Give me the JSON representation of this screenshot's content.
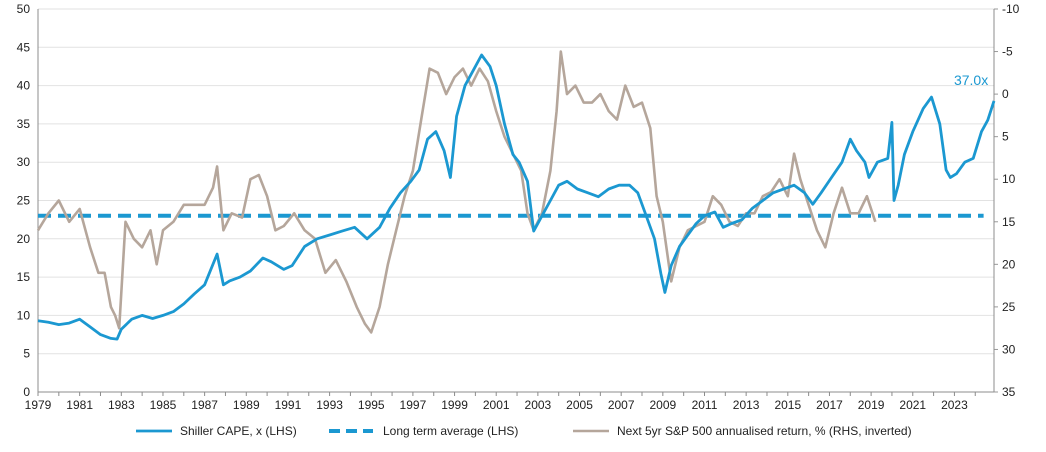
{
  "chart_data": {
    "type": "line",
    "title": "",
    "xlabel": "",
    "ylabel_left": "",
    "ylabel_right": "",
    "x_ticks": [
      "1979",
      "1981",
      "1983",
      "1985",
      "1987",
      "1989",
      "1991",
      "1993",
      "1995",
      "1997",
      "1999",
      "2001",
      "2003",
      "2005",
      "2007",
      "2009",
      "2011",
      "2013",
      "2015",
      "2017",
      "2019",
      "2021",
      "2023"
    ],
    "xlim": [
      1979,
      2024.9
    ],
    "left_axis": {
      "ticks": [
        "0",
        "5",
        "10",
        "15",
        "20",
        "25",
        "30",
        "35",
        "40",
        "45",
        "50"
      ],
      "ylim": [
        0,
        50
      ]
    },
    "right_axis": {
      "ticks": [
        "-10",
        "-5",
        "0",
        "5",
        "10",
        "15",
        "20",
        "25",
        "30",
        "35"
      ],
      "ylim": [
        -10,
        35
      ],
      "inverted": true
    },
    "legend_position": "bottom",
    "colors": {
      "cape": "#1b98d1",
      "average": "#1b98d1",
      "returns": "#b5a69b",
      "annotation": "#1b98d1"
    },
    "annotation": {
      "text": "37.0x",
      "x": 2023.8,
      "y": 40.1
    },
    "series": [
      {
        "name": "Shiller CAPE, x (LHS)",
        "axis": "left",
        "style": "solid",
        "x": [
          1979.0,
          1979.5,
          1980.0,
          1980.5,
          1981.0,
          1981.5,
          1982.0,
          1982.5,
          1982.8,
          1983.0,
          1983.5,
          1984.0,
          1984.5,
          1985.0,
          1985.5,
          1986.0,
          1986.5,
          1987.0,
          1987.6,
          1987.9,
          1988.2,
          1988.7,
          1989.2,
          1989.8,
          1990.2,
          1990.8,
          1991.2,
          1991.8,
          1992.4,
          1993.0,
          1993.6,
          1994.2,
          1994.8,
          1995.4,
          1995.9,
          1996.4,
          1996.9,
          1997.3,
          1997.7,
          1998.1,
          1998.5,
          1998.8,
          1999.1,
          1999.5,
          1999.9,
          2000.3,
          2000.7,
          2001.0,
          2001.4,
          2001.8,
          2002.1,
          2002.5,
          2002.8,
          2003.2,
          2003.6,
          2004.0,
          2004.4,
          2004.9,
          2005.4,
          2005.9,
          2006.4,
          2006.9,
          2007.4,
          2007.8,
          2008.2,
          2008.6,
          2008.9,
          2009.1,
          2009.4,
          2009.8,
          2010.2,
          2010.6,
          2011.0,
          2011.5,
          2011.9,
          2012.3,
          2012.8,
          2013.3,
          2013.8,
          2014.3,
          2014.8,
          2015.3,
          2015.8,
          2016.2,
          2016.6,
          2017.1,
          2017.6,
          2018.0,
          2018.3,
          2018.7,
          2018.9,
          2019.3,
          2019.8,
          2020.0,
          2020.1,
          2020.3,
          2020.6,
          2021.0,
          2021.5,
          2021.9,
          2022.3,
          2022.6,
          2022.8,
          2023.1,
          2023.5,
          2023.9,
          2024.3,
          2024.6,
          2024.9
        ],
        "values": [
          9.3,
          9.1,
          8.8,
          9.0,
          9.5,
          8.5,
          7.5,
          7.0,
          6.9,
          8.2,
          9.5,
          10.0,
          9.6,
          10.0,
          10.5,
          11.5,
          12.8,
          14.0,
          18.0,
          14.0,
          14.5,
          15.0,
          15.8,
          17.5,
          17.0,
          16.0,
          16.5,
          19.0,
          20.0,
          20.5,
          21.0,
          21.5,
          20.0,
          21.5,
          24.0,
          26.0,
          27.5,
          29.0,
          33.0,
          34.0,
          31.5,
          28.0,
          36.0,
          40.0,
          42.0,
          44.0,
          42.5,
          40.0,
          35.0,
          31.0,
          30.0,
          27.5,
          21.0,
          23.0,
          25.0,
          27.0,
          27.5,
          26.5,
          26.0,
          25.5,
          26.5,
          27.0,
          27.0,
          26.0,
          23.0,
          20.0,
          15.5,
          13.0,
          16.5,
          19.0,
          20.5,
          22.0,
          23.0,
          23.5,
          21.5,
          22.0,
          22.5,
          24.0,
          25.0,
          26.0,
          26.5,
          27.0,
          26.0,
          24.5,
          26.0,
          28.0,
          30.0,
          33.0,
          31.5,
          30.0,
          28.0,
          30.0,
          30.5,
          35.2,
          25.0,
          27.0,
          31.0,
          34.0,
          37.0,
          38.5,
          35.0,
          29.0,
          28.0,
          28.5,
          30.0,
          30.5,
          34.0,
          35.5,
          38.0
        ]
      },
      {
        "name": "Long term average (LHS)",
        "axis": "left",
        "style": "dashed",
        "x": [
          1979.0,
          2024.4
        ],
        "values": [
          23.0,
          23.0
        ]
      },
      {
        "name": "Next 5yr S&P 500 annualised return, % (RHS, inverted)",
        "axis": "right",
        "style": "solid",
        "x": [
          1979.0,
          1979.5,
          1980.0,
          1980.5,
          1981.0,
          1981.5,
          1981.9,
          1982.2,
          1982.5,
          1982.7,
          1982.9,
          1983.2,
          1983.6,
          1984.0,
          1984.4,
          1984.7,
          1985.0,
          1985.5,
          1986.0,
          1986.5,
          1987.0,
          1987.4,
          1987.6,
          1987.9,
          1988.3,
          1988.8,
          1989.2,
          1989.6,
          1990.0,
          1990.4,
          1990.8,
          1991.3,
          1991.8,
          1992.3,
          1992.8,
          1993.3,
          1993.8,
          1994.3,
          1994.7,
          1995.0,
          1995.4,
          1995.8,
          1996.2,
          1996.6,
          1997.0,
          1997.4,
          1997.8,
          1998.2,
          1998.6,
          1999.0,
          1999.4,
          1999.8,
          2000.2,
          2000.6,
          2001.0,
          2001.4,
          2001.8,
          2002.2,
          2002.5,
          2002.8,
          2003.2,
          2003.6,
          2003.9,
          2004.1,
          2004.4,
          2004.8,
          2005.2,
          2005.6,
          2006.0,
          2006.4,
          2006.8,
          2007.2,
          2007.6,
          2008.0,
          2008.4,
          2008.7,
          2009.0,
          2009.4,
          2009.8,
          2010.2,
          2010.6,
          2011.0,
          2011.4,
          2011.8,
          2012.2,
          2012.6,
          2013.0,
          2013.4,
          2013.8,
          2014.2,
          2014.6,
          2015.0,
          2015.3,
          2015.6,
          2016.0,
          2016.4,
          2016.8,
          2017.2,
          2017.6,
          2018.0,
          2018.4,
          2018.8,
          2019.2
        ],
        "values": [
          16.0,
          14.0,
          12.5,
          15.0,
          13.5,
          18.0,
          21.0,
          21.0,
          25.0,
          26.0,
          27.5,
          15.0,
          17.0,
          18.0,
          16.0,
          20.0,
          16.0,
          15.0,
          13.0,
          13.0,
          13.0,
          11.0,
          8.5,
          16.0,
          14.0,
          14.5,
          10.0,
          9.5,
          12.0,
          16.0,
          15.5,
          14.0,
          16.0,
          17.0,
          21.0,
          19.5,
          22.0,
          25.0,
          27.0,
          28.0,
          25.0,
          20.0,
          16.0,
          12.0,
          9.0,
          3.0,
          -3.0,
          -2.5,
          0.0,
          -2.0,
          -3.0,
          -1.0,
          -3.0,
          -1.5,
          2.0,
          5.0,
          7.0,
          9.0,
          14.0,
          16.0,
          14.0,
          9.0,
          2.0,
          -5.0,
          0.0,
          -1.0,
          1.0,
          1.0,
          0.0,
          2.0,
          3.0,
          -1.0,
          1.5,
          1.0,
          4.0,
          12.0,
          15.0,
          22.0,
          18.0,
          16.0,
          15.5,
          15.0,
          12.0,
          13.0,
          15.0,
          15.5,
          14.0,
          14.0,
          12.0,
          11.5,
          10.0,
          12.0,
          7.0,
          10.0,
          13.0,
          16.0,
          18.0,
          14.0,
          11.0,
          14.0,
          14.0,
          12.0,
          15.0
        ]
      }
    ]
  }
}
